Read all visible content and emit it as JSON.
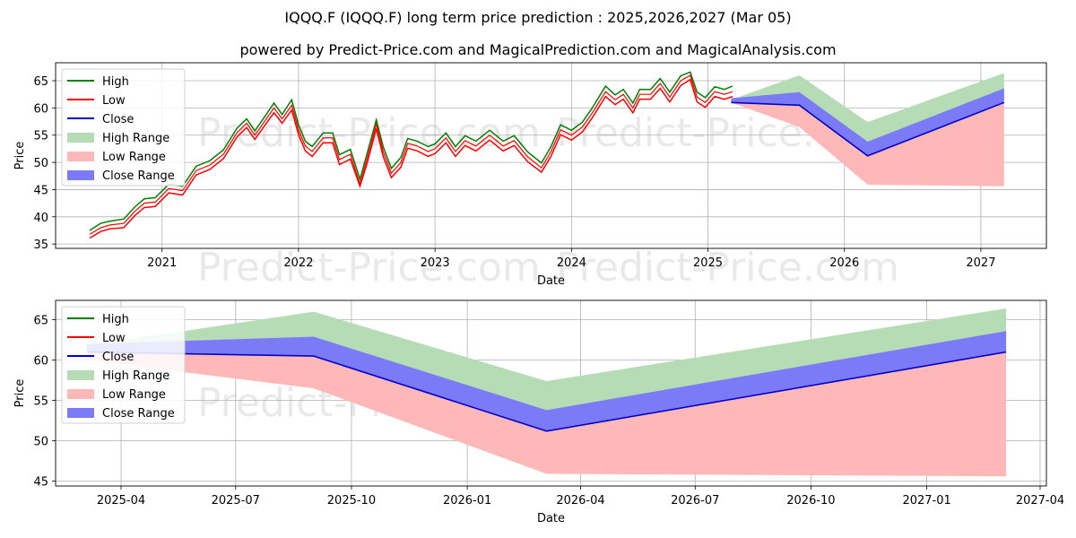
{
  "title": "IQQQ.F (IQQQ.F) long term price prediction : 2025,2026,2027 (Mar 05)",
  "subtitle": "powered by Predict-Price.com and MagicalPrediction.com and MagicalAnalysis.com",
  "watermark": "Predict-Price.com",
  "colors": {
    "high": "#008000",
    "low": "#ff0000",
    "close": "#0000cd",
    "high_range": "#b5dcb5",
    "low_range": "#ffb8b8",
    "close_range": "#7b7bf7",
    "grid": "#b0b0b0"
  },
  "legend": [
    "High",
    "Low",
    "Close",
    "High Range",
    "Low Range",
    "Close Range"
  ],
  "chart_data": [
    {
      "type": "line",
      "xlabel": "Date",
      "ylabel": "Price",
      "xlim": [
        2020.22,
        2027.48
      ],
      "ylim": [
        34.2,
        68.3
      ],
      "x_ticks": [
        {
          "v": 2021.0,
          "label": "2021"
        },
        {
          "v": 2022.0,
          "label": "2022"
        },
        {
          "v": 2023.0,
          "label": "2023"
        },
        {
          "v": 2024.0,
          "label": "2024"
        },
        {
          "v": 2025.0,
          "label": "2025"
        },
        {
          "v": 2026.0,
          "label": "2026"
        },
        {
          "v": 2027.0,
          "label": "2027"
        }
      ],
      "y_ticks": [
        35,
        40,
        45,
        50,
        55,
        60,
        65
      ],
      "legend_position": "upper-left",
      "grid": true,
      "history": {
        "x": [
          2020.47,
          2020.55,
          2020.62,
          2020.72,
          2020.8,
          2020.87,
          2020.95,
          2021.05,
          2021.15,
          2021.25,
          2021.35,
          2021.45,
          2021.55,
          2021.62,
          2021.68,
          2021.75,
          2021.82,
          2021.88,
          2021.95,
          2022.0,
          2022.05,
          2022.1,
          2022.18,
          2022.25,
          2022.3,
          2022.38,
          2022.45,
          2022.5,
          2022.57,
          2022.62,
          2022.68,
          2022.75,
          2022.8,
          2022.87,
          2022.95,
          2023.0,
          2023.08,
          2023.15,
          2023.22,
          2023.3,
          2023.4,
          2023.5,
          2023.58,
          2023.68,
          2023.78,
          2023.85,
          2023.92,
          2024.0,
          2024.08,
          2024.15,
          2024.25,
          2024.32,
          2024.38,
          2024.45,
          2024.5,
          2024.58,
          2024.65,
          2024.72,
          2024.8,
          2024.87,
          2024.92,
          2024.98,
          2025.05,
          2025.12,
          2025.18
        ],
        "close": [
          36.8,
          38.0,
          38.5,
          38.8,
          41.0,
          42.5,
          42.7,
          45.2,
          44.8,
          48.5,
          49.5,
          51.5,
          55.5,
          57.2,
          55.0,
          57.5,
          60.0,
          58.0,
          60.5,
          56.0,
          53.0,
          52.0,
          54.5,
          54.5,
          50.5,
          51.5,
          46.0,
          50.5,
          57.0,
          52.0,
          48.0,
          50.0,
          53.5,
          53.0,
          52.0,
          52.5,
          54.5,
          52.0,
          54.0,
          53.0,
          55.0,
          53.0,
          54.0,
          51.0,
          49.0,
          52.0,
          56.0,
          55.0,
          56.5,
          59.0,
          63.0,
          61.5,
          62.5,
          60.0,
          62.5,
          62.5,
          64.5,
          62.0,
          65.0,
          66.0,
          62.0,
          61.0,
          63.0,
          62.5,
          63.0
        ],
        "high": [
          37.5,
          38.8,
          39.2,
          39.6,
          41.8,
          43.3,
          43.5,
          46.0,
          45.6,
          49.3,
          50.3,
          52.3,
          56.3,
          58.0,
          55.8,
          58.3,
          60.9,
          58.8,
          61.5,
          56.9,
          53.9,
          52.9,
          55.4,
          55.4,
          51.4,
          52.4,
          46.9,
          51.4,
          57.8,
          52.9,
          48.9,
          50.9,
          54.4,
          53.9,
          52.9,
          53.4,
          55.4,
          52.9,
          54.9,
          53.9,
          55.9,
          53.9,
          54.9,
          51.9,
          49.9,
          52.9,
          56.9,
          55.9,
          57.4,
          59.9,
          64.0,
          62.4,
          63.4,
          60.9,
          63.4,
          63.4,
          65.4,
          62.9,
          65.9,
          66.6,
          62.9,
          61.9,
          63.9,
          63.4,
          64.0
        ],
        "low": [
          36.1,
          37.3,
          37.8,
          38.0,
          40.2,
          41.7,
          41.9,
          44.4,
          44.0,
          47.7,
          48.7,
          50.7,
          54.7,
          56.4,
          54.2,
          56.7,
          59.1,
          57.2,
          59.6,
          55.1,
          52.1,
          51.1,
          53.6,
          53.6,
          49.6,
          50.6,
          45.6,
          49.6,
          56.2,
          51.1,
          47.2,
          49.1,
          52.6,
          52.1,
          51.1,
          51.6,
          53.6,
          51.1,
          53.1,
          52.1,
          54.1,
          52.1,
          53.1,
          50.1,
          48.2,
          51.1,
          55.1,
          54.1,
          55.6,
          58.1,
          62.1,
          60.6,
          61.6,
          59.1,
          61.6,
          61.6,
          63.6,
          61.1,
          64.1,
          65.2,
          61.1,
          60.1,
          62.1,
          61.6,
          62.1
        ]
      },
      "forecast": {
        "x": [
          2025.17,
          2025.67,
          2026.17,
          2027.17
        ],
        "high_range": {
          "upper": [
            61.5,
            66.0,
            57.4,
            66.4
          ],
          "lower": [
            61.0,
            60.5,
            51.2,
            61.0
          ]
        },
        "low_range": {
          "upper": [
            61.0,
            60.5,
            51.2,
            61.0
          ],
          "lower": [
            61.0,
            56.5,
            45.9,
            45.6
          ]
        },
        "close_range": {
          "upper": [
            61.8,
            62.9,
            53.8,
            63.6
          ],
          "lower": [
            61.0,
            60.5,
            51.2,
            61.0
          ]
        },
        "close": [
          61.0,
          60.5,
          51.2,
          61.0
        ]
      }
    },
    {
      "type": "line",
      "xlabel": "Date",
      "ylabel": "Price",
      "xlim": [
        "2025-02-08",
        "2027-04-06"
      ],
      "ylim": [
        44.4,
        67.4
      ],
      "x_ticks": [
        {
          "v": "2025-04-01",
          "label": "2025-04"
        },
        {
          "v": "2025-07-01",
          "label": "2025-07"
        },
        {
          "v": "2025-10-01",
          "label": "2025-10"
        },
        {
          "v": "2026-01-01",
          "label": "2026-01"
        },
        {
          "v": "2026-04-01",
          "label": "2026-04"
        },
        {
          "v": "2026-07-01",
          "label": "2026-07"
        },
        {
          "v": "2026-10-01",
          "label": "2026-10"
        },
        {
          "v": "2027-01-01",
          "label": "2027-01"
        },
        {
          "v": "2027-04-01",
          "label": "2027-04"
        }
      ],
      "y_ticks": [
        45,
        50,
        55,
        60,
        65
      ],
      "legend_position": "upper-left",
      "grid": true,
      "forecast": {
        "x": [
          "2025-03-05",
          "2025-09-01",
          "2026-03-05",
          "2027-03-05"
        ],
        "high_range": {
          "upper": [
            61.8,
            66.0,
            57.4,
            66.4
          ],
          "lower": [
            61.3,
            60.5,
            51.2,
            61.0
          ]
        },
        "low_range": {
          "upper": [
            61.0,
            60.5,
            51.2,
            61.0
          ],
          "lower": [
            60.0,
            56.5,
            45.9,
            45.6
          ]
        },
        "close_range": {
          "upper": [
            62.0,
            62.9,
            53.8,
            63.6
          ],
          "lower": [
            61.0,
            60.5,
            51.2,
            61.0
          ]
        },
        "close": [
          61.0,
          60.5,
          51.2,
          61.0
        ]
      }
    }
  ]
}
